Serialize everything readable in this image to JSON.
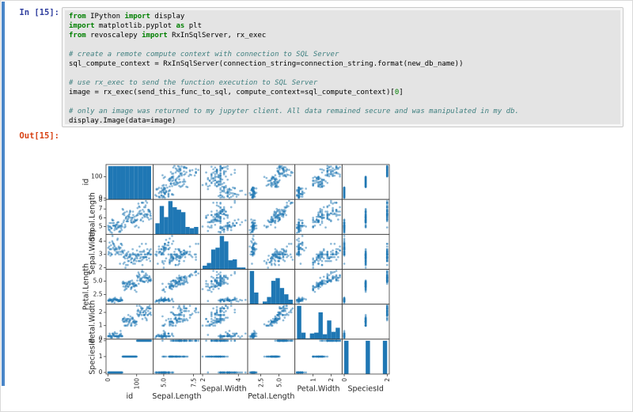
{
  "cell": {
    "input_prompt": "In [15]:",
    "output_prompt": "Out[15]:",
    "indicator_color": "#4a86c8",
    "in_prompt_color": "#303f9f",
    "out_prompt_color": "#d84315",
    "code_bg": "#e4e4e4"
  },
  "syntax_colors": {
    "k": "#008000",
    "c": "#408080",
    "n": "#008000",
    "t": "#000000"
  },
  "code": {
    "lines": [
      [
        [
          "k",
          "from"
        ],
        [
          "t",
          " IPython "
        ],
        [
          "k",
          "import"
        ],
        [
          "t",
          " display"
        ]
      ],
      [
        [
          "k",
          "import"
        ],
        [
          "t",
          " matplotlib.pyplot "
        ],
        [
          "k",
          "as"
        ],
        [
          "t",
          " plt"
        ]
      ],
      [
        [
          "k",
          "from"
        ],
        [
          "t",
          " revoscalepy "
        ],
        [
          "k",
          "import"
        ],
        [
          "t",
          " RxInSqlServer, rx_exec"
        ]
      ],
      [],
      [
        [
          "c",
          "# create a remote compute context with connection to SQL Server"
        ]
      ],
      [
        [
          "t",
          "sql_compute_context = RxInSqlServer(connection_string=connection_string.format(new_db_name))"
        ]
      ],
      [],
      [
        [
          "c",
          "# use rx_exec to send the function execution to SQL Server"
        ]
      ],
      [
        [
          "t",
          "image = rx_exec(send_this_func_to_sql, compute_context=sql_compute_context)["
        ],
        [
          "n",
          "0"
        ],
        [
          "t",
          "]"
        ]
      ],
      [],
      [
        [
          "c",
          "# only an image was returned to my jupyter client. All data remained secure and was manipulated in my db."
        ]
      ],
      [
        [
          "t",
          "display.Image(data=image)"
        ]
      ]
    ]
  },
  "chart_data": {
    "type": "scatter_matrix",
    "diagonal": "hist",
    "bins": 10,
    "point_color": "#1f77b4",
    "marker_alpha": 0.5,
    "spine_color": "#3c3c3c",
    "tick_color": "#262626",
    "legend": false,
    "grid": false,
    "variables": [
      {
        "key": "id",
        "label": "id",
        "x_ticks": [
          {
            "v": 0,
            "t": "0"
          },
          {
            "v": 100,
            "t": "100"
          }
        ],
        "y_ticks": [
          {
            "v": 100,
            "t": "100"
          },
          {
            "v": 0,
            "t": "0"
          }
        ]
      },
      {
        "key": "sepal_length",
        "label": "Sepal.Length",
        "x_ticks": [
          {
            "v": 5,
            "t": "5.0"
          },
          {
            "v": 7.5,
            "t": "7.5"
          }
        ],
        "y_ticks": [
          {
            "v": 8,
            "t": "8"
          },
          {
            "v": 7,
            "t": "7"
          },
          {
            "v": 6,
            "t": "6"
          },
          {
            "v": 5,
            "t": "5"
          }
        ]
      },
      {
        "key": "sepal_width",
        "label": "Sepal.Width",
        "x_ticks": [
          {
            "v": 2,
            "t": "2"
          },
          {
            "v": 4,
            "t": "4"
          }
        ],
        "y_ticks": [
          {
            "v": 4,
            "t": "4"
          },
          {
            "v": 3,
            "t": "3"
          },
          {
            "v": 2,
            "t": "2"
          }
        ]
      },
      {
        "key": "petal_length",
        "label": "Petal.Length",
        "x_ticks": [
          {
            "v": 2.5,
            "t": "2.5"
          },
          {
            "v": 5,
            "t": "5.0"
          }
        ],
        "y_ticks": [
          {
            "v": 5,
            "t": "5.0"
          },
          {
            "v": 2.5,
            "t": "2.5"
          }
        ]
      },
      {
        "key": "petal_width",
        "label": "Petal.Width",
        "x_ticks": [
          {
            "v": 1,
            "t": "1"
          },
          {
            "v": 2,
            "t": "2"
          }
        ],
        "y_ticks": [
          {
            "v": 2,
            "t": "2"
          },
          {
            "v": 1,
            "t": "1"
          },
          {
            "v": 0,
            "t": "0"
          }
        ]
      },
      {
        "key": "species_id",
        "label": "SpeciesId",
        "x_ticks": [
          {
            "v": 0,
            "t": "0"
          },
          {
            "v": 2,
            "t": "2"
          }
        ],
        "y_ticks": [
          {
            "v": 2,
            "t": "2"
          },
          {
            "v": 1,
            "t": "1"
          },
          {
            "v": 0,
            "t": "0"
          }
        ]
      }
    ],
    "data": {
      "id_start": 1,
      "species_counts": [
        50,
        50,
        50
      ],
      "sepal_length": [
        5.1,
        4.9,
        4.7,
        4.6,
        5.0,
        5.4,
        4.6,
        5.0,
        4.4,
        4.9,
        5.4,
        4.8,
        4.8,
        4.3,
        5.8,
        5.7,
        5.4,
        5.1,
        5.7,
        5.1,
        5.4,
        5.1,
        4.6,
        5.1,
        4.8,
        5.0,
        5.0,
        5.2,
        5.2,
        4.7,
        4.8,
        5.4,
        5.2,
        5.5,
        4.9,
        5.0,
        5.5,
        4.9,
        4.4,
        5.1,
        5.0,
        4.5,
        4.4,
        5.0,
        5.1,
        4.8,
        5.1,
        4.6,
        5.3,
        5.0,
        7.0,
        6.4,
        6.9,
        5.5,
        6.5,
        5.7,
        6.3,
        4.9,
        6.6,
        5.2,
        5.0,
        5.9,
        6.0,
        6.1,
        5.6,
        6.7,
        5.6,
        5.8,
        6.2,
        5.6,
        5.9,
        6.1,
        6.3,
        6.1,
        6.4,
        6.6,
        6.8,
        6.7,
        6.0,
        5.7,
        5.5,
        5.5,
        5.8,
        6.0,
        5.4,
        6.0,
        6.7,
        6.3,
        5.6,
        5.5,
        5.5,
        6.1,
        5.8,
        5.0,
        5.6,
        5.7,
        5.7,
        6.2,
        5.1,
        5.7,
        6.3,
        5.8,
        7.1,
        6.3,
        6.5,
        7.6,
        4.9,
        7.3,
        6.7,
        7.2,
        6.5,
        6.4,
        6.8,
        5.7,
        5.8,
        6.4,
        6.5,
        7.7,
        7.7,
        6.0,
        6.9,
        5.6,
        7.7,
        6.3,
        6.7,
        7.2,
        6.2,
        6.1,
        6.4,
        7.2,
        7.4,
        7.9,
        6.4,
        6.3,
        6.1,
        7.7,
        6.3,
        6.4,
        6.0,
        6.9,
        6.7,
        6.9,
        5.8,
        6.8,
        6.7,
        6.7,
        6.3,
        6.5,
        6.2,
        5.9
      ],
      "sepal_width": [
        3.5,
        3.0,
        3.2,
        3.1,
        3.6,
        3.9,
        3.4,
        3.4,
        2.9,
        3.1,
        3.7,
        3.4,
        3.0,
        3.0,
        4.0,
        4.4,
        3.9,
        3.5,
        3.8,
        3.8,
        3.4,
        3.7,
        3.6,
        3.3,
        3.4,
        3.0,
        3.4,
        3.5,
        3.4,
        3.2,
        3.1,
        3.4,
        4.1,
        4.2,
        3.1,
        3.2,
        3.5,
        3.6,
        3.0,
        3.4,
        3.5,
        2.3,
        3.2,
        3.5,
        3.8,
        3.0,
        3.8,
        3.2,
        3.7,
        3.3,
        3.2,
        3.2,
        3.1,
        2.3,
        2.8,
        2.8,
        3.3,
        2.4,
        2.9,
        2.7,
        2.0,
        3.0,
        2.2,
        2.9,
        2.9,
        3.1,
        3.0,
        2.7,
        2.2,
        2.5,
        3.2,
        2.8,
        2.5,
        2.8,
        2.9,
        3.0,
        2.8,
        3.0,
        2.9,
        2.6,
        2.4,
        2.4,
        2.7,
        2.7,
        3.0,
        3.4,
        3.1,
        2.3,
        3.0,
        2.5,
        2.6,
        3.0,
        2.6,
        2.3,
        2.7,
        3.0,
        2.9,
        2.9,
        2.5,
        2.8,
        3.3,
        2.7,
        3.0,
        2.9,
        3.0,
        3.0,
        2.5,
        2.9,
        2.5,
        3.6,
        3.2,
        2.7,
        3.0,
        2.5,
        2.8,
        3.2,
        3.0,
        3.8,
        2.6,
        2.2,
        3.2,
        2.8,
        2.8,
        2.7,
        3.3,
        3.2,
        2.8,
        3.0,
        2.8,
        3.0,
        2.8,
        3.8,
        2.8,
        2.8,
        2.6,
        3.0,
        3.4,
        3.1,
        3.0,
        3.1,
        3.1,
        3.1,
        2.7,
        3.2,
        3.3,
        3.0,
        2.5,
        3.0,
        3.4,
        3.0
      ],
      "petal_length": [
        1.4,
        1.4,
        1.3,
        1.5,
        1.4,
        1.7,
        1.4,
        1.5,
        1.4,
        1.5,
        1.5,
        1.6,
        1.4,
        1.1,
        1.2,
        1.5,
        1.3,
        1.4,
        1.7,
        1.5,
        1.7,
        1.5,
        1.0,
        1.7,
        1.9,
        1.6,
        1.6,
        1.5,
        1.4,
        1.6,
        1.6,
        1.5,
        1.5,
        1.4,
        1.5,
        1.2,
        1.3,
        1.4,
        1.3,
        1.5,
        1.3,
        1.3,
        1.3,
        1.6,
        1.9,
        1.4,
        1.6,
        1.4,
        1.5,
        1.4,
        4.7,
        4.5,
        4.9,
        4.0,
        4.6,
        4.5,
        4.7,
        3.3,
        4.6,
        3.9,
        3.5,
        4.2,
        4.0,
        4.7,
        3.6,
        4.4,
        4.5,
        4.1,
        4.5,
        3.9,
        4.8,
        4.0,
        4.9,
        4.7,
        4.3,
        4.4,
        4.8,
        5.0,
        4.5,
        3.5,
        3.8,
        3.7,
        3.9,
        5.1,
        4.5,
        4.5,
        4.7,
        4.4,
        4.1,
        4.0,
        4.4,
        4.6,
        4.0,
        3.3,
        4.2,
        4.2,
        4.2,
        4.3,
        3.0,
        4.1,
        6.0,
        5.1,
        5.9,
        5.6,
        5.8,
        6.6,
        4.5,
        6.3,
        5.8,
        6.1,
        5.1,
        5.3,
        5.5,
        5.0,
        5.1,
        5.3,
        5.5,
        6.7,
        6.9,
        5.0,
        5.7,
        4.9,
        6.7,
        4.9,
        5.7,
        6.0,
        4.8,
        4.9,
        5.6,
        5.8,
        6.1,
        6.4,
        5.6,
        5.1,
        5.6,
        6.1,
        5.6,
        5.5,
        4.8,
        5.4,
        5.6,
        5.1,
        5.1,
        5.9,
        5.7,
        5.2,
        5.0,
        5.2,
        5.4,
        5.1
      ],
      "petal_width": [
        0.2,
        0.2,
        0.2,
        0.2,
        0.2,
        0.4,
        0.3,
        0.2,
        0.2,
        0.1,
        0.2,
        0.2,
        0.1,
        0.1,
        0.2,
        0.4,
        0.4,
        0.3,
        0.3,
        0.3,
        0.2,
        0.4,
        0.2,
        0.5,
        0.2,
        0.2,
        0.4,
        0.2,
        0.2,
        0.2,
        0.2,
        0.4,
        0.1,
        0.2,
        0.2,
        0.2,
        0.2,
        0.1,
        0.2,
        0.2,
        0.3,
        0.3,
        0.2,
        0.6,
        0.4,
        0.3,
        0.2,
        0.2,
        0.2,
        0.2,
        1.4,
        1.5,
        1.5,
        1.3,
        1.5,
        1.3,
        1.6,
        1.0,
        1.3,
        1.4,
        1.0,
        1.5,
        1.0,
        1.4,
        1.3,
        1.4,
        1.5,
        1.0,
        1.5,
        1.1,
        1.8,
        1.3,
        1.5,
        1.2,
        1.3,
        1.4,
        1.4,
        1.7,
        1.5,
        1.0,
        1.1,
        1.0,
        1.2,
        1.6,
        1.5,
        1.6,
        1.5,
        1.3,
        1.3,
        1.3,
        1.2,
        1.4,
        1.2,
        1.0,
        1.3,
        1.2,
        1.3,
        1.3,
        1.1,
        1.3,
        2.5,
        1.9,
        2.1,
        1.8,
        2.2,
        2.1,
        1.7,
        1.8,
        1.8,
        2.5,
        2.0,
        1.9,
        2.1,
        2.0,
        2.4,
        2.3,
        1.8,
        2.2,
        2.3,
        1.5,
        2.3,
        2.0,
        2.0,
        1.8,
        2.1,
        1.8,
        1.8,
        1.8,
        2.1,
        1.6,
        1.9,
        2.0,
        2.2,
        1.5,
        1.4,
        2.3,
        2.4,
        1.8,
        1.8,
        2.1,
        2.4,
        2.3,
        1.9,
        2.3,
        2.5,
        2.3,
        1.9,
        2.0,
        2.3,
        1.8
      ]
    }
  }
}
